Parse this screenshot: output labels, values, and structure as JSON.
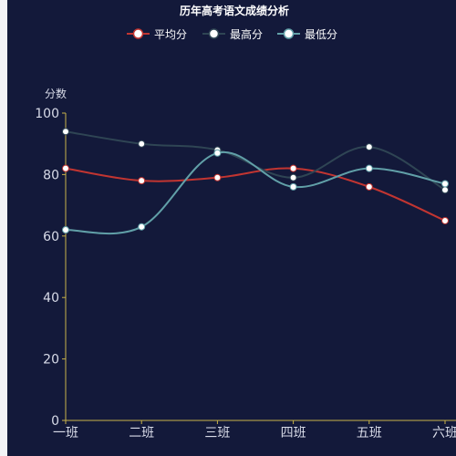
{
  "chart_data": {
    "type": "line",
    "title": "历年高考语文成绩分析",
    "ylabel": "分数",
    "ylim": [
      0,
      100
    ],
    "yticks": [
      0,
      20,
      40,
      60,
      80,
      100
    ],
    "categories": [
      "一班",
      "二班",
      "三班",
      "四班",
      "五班",
      "六班"
    ],
    "legend_position": "top-center",
    "series": [
      {
        "name": "平均分",
        "values": [
          82,
          78,
          79,
          82,
          76,
          65
        ],
        "color": "#c23531"
      },
      {
        "name": "最高分",
        "values": [
          94,
          90,
          88,
          79,
          89,
          75
        ],
        "color": "#2f4554"
      },
      {
        "name": "最低分",
        "values": [
          62,
          63,
          87,
          76,
          82,
          77
        ],
        "color": "#61a0a8"
      }
    ]
  }
}
